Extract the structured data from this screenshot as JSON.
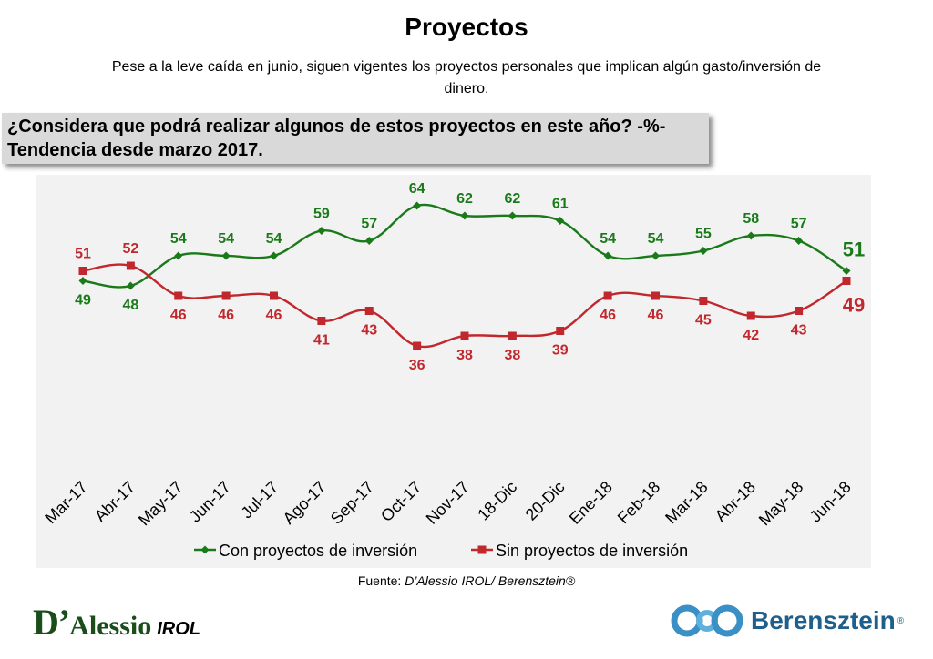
{
  "header": {
    "title": "Proyectos",
    "subtitle": "Pese a la leve caída en junio, siguen vigentes los proyectos personales que implican algún gasto/inversión de dinero."
  },
  "question_box": {
    "text": "¿Considera que podrá realizar algunos de estos proyectos en este año? -%- Tendencia desde marzo 2017."
  },
  "chart_data": {
    "type": "line",
    "categories": [
      "Mar-17",
      "Abr-17",
      "May-17",
      "Jun-17",
      "Jul-17",
      "Ago-17",
      "Sep-17",
      "Oct-17",
      "Nov-17",
      "18-Dic",
      "20-Dic",
      "Ene-18",
      "Feb-18",
      "Mar-18",
      "Abr-18",
      "May-18",
      "Jun-18"
    ],
    "series": [
      {
        "name": "Con proyectos de inversión",
        "color": "#1a7a1a",
        "marker": "diamond",
        "values": [
          49,
          48,
          54,
          54,
          54,
          59,
          57,
          64,
          62,
          62,
          61,
          54,
          54,
          55,
          58,
          57,
          51
        ]
      },
      {
        "name": "Sin proyectos de inversión",
        "color": "#c0282d",
        "marker": "square",
        "values": [
          51,
          52,
          46,
          46,
          46,
          41,
          43,
          36,
          38,
          38,
          39,
          46,
          46,
          45,
          42,
          43,
          49
        ]
      }
    ],
    "title": "",
    "xlabel": "",
    "ylabel": "",
    "ylim": [
      30,
      70
    ],
    "grid": false,
    "plot_background": "#f2f2f2",
    "legend_position": "bottom"
  },
  "footer": {
    "source_label": "Fuente: ",
    "source_text": "D’Alessio IROL/ Berensztein®"
  },
  "logos": {
    "left_d": "D’",
    "left_name": "Alessio",
    "left_suffix": "IROL",
    "right_name": "Berensztein",
    "right_reg": "®"
  }
}
